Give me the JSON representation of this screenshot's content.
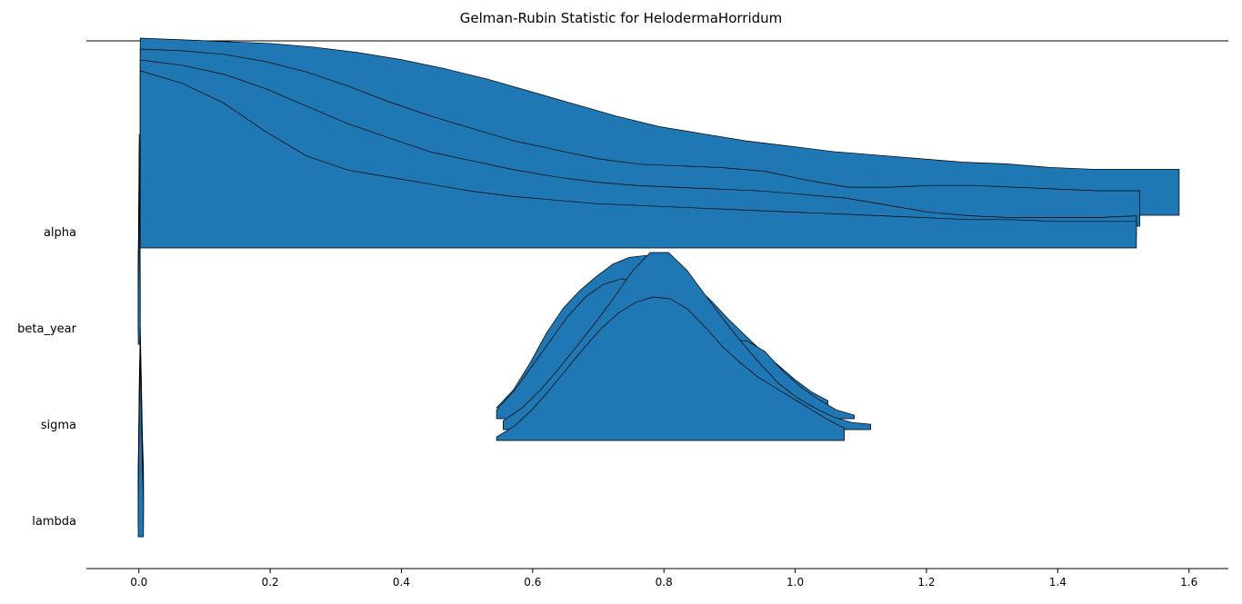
{
  "chart_data": {
    "type": "ridgeplot",
    "title": "Gelman-Rubin Statistic for HelodermaHorridum",
    "xlabel": "",
    "ylabel": "",
    "xlim": [
      -0.08,
      1.66
    ],
    "x_ticks": [
      "0.0",
      "0.2",
      "0.4",
      "0.6",
      "0.8",
      "1.0",
      "1.2",
      "1.4",
      "1.6"
    ],
    "x_tick_values": [
      0.0,
      0.2,
      0.4,
      0.6,
      0.8,
      1.0,
      1.2,
      1.4,
      1.6
    ],
    "fill_color": "#1f77b4",
    "line_color": "#000000",
    "grid": false,
    "parameters": [
      {
        "label": "alpha",
        "chains": [
          {
            "x_min": 0.002,
            "x_max": 1.52,
            "y": [
              1.0,
              0.93,
              0.82,
              0.66,
              0.52,
              0.44,
              0.4,
              0.36,
              0.32,
              0.29,
              0.27,
              0.25,
              0.24,
              0.23,
              0.22,
              0.21,
              0.2,
              0.19,
              0.18,
              0.17,
              0.16,
              0.16,
              0.15,
              0.15,
              0.15
            ]
          },
          {
            "x_min": 0.002,
            "x_max": 1.52,
            "y": [
              1.0,
              0.97,
              0.92,
              0.84,
              0.74,
              0.64,
              0.56,
              0.48,
              0.43,
              0.38,
              0.34,
              0.31,
              0.29,
              0.28,
              0.27,
              0.26,
              0.24,
              0.22,
              0.18,
              0.14,
              0.12,
              0.11,
              0.11,
              0.11,
              0.12
            ]
          },
          {
            "x_min": 0.002,
            "x_max": 1.525,
            "y": [
              1.0,
              0.99,
              0.97,
              0.93,
              0.87,
              0.79,
              0.7,
              0.62,
              0.55,
              0.48,
              0.43,
              0.38,
              0.35,
              0.34,
              0.33,
              0.31,
              0.26,
              0.22,
              0.22,
              0.23,
              0.23,
              0.22,
              0.21,
              0.2,
              0.2
            ]
          },
          {
            "x_min": 0.002,
            "x_max": 1.585,
            "y": [
              1.0,
              0.99,
              0.98,
              0.97,
              0.95,
              0.92,
              0.88,
              0.83,
              0.77,
              0.7,
              0.63,
              0.56,
              0.5,
              0.46,
              0.42,
              0.39,
              0.36,
              0.34,
              0.32,
              0.3,
              0.29,
              0.27,
              0.26,
              0.26,
              0.26
            ]
          }
        ]
      },
      {
        "label": "beta_year",
        "chains": [
          {
            "x_min": -0.001,
            "x_max": 0.002,
            "y": [
              0.3,
              0.6,
              1.0,
              0.6,
              0.3
            ]
          },
          {
            "x_min": -0.001,
            "x_max": 0.002,
            "y": [
              0.3,
              0.6,
              1.0,
              0.6,
              0.3
            ]
          },
          {
            "x_min": -0.001,
            "x_max": 0.002,
            "y": [
              0.3,
              0.6,
              1.0,
              0.6,
              0.3
            ]
          },
          {
            "x_min": -0.001,
            "x_max": 0.002,
            "y": [
              0.3,
              0.6,
              1.0,
              0.6,
              0.3
            ]
          }
        ]
      },
      {
        "label": "sigma",
        "chains": [
          {
            "x_min": 0.545,
            "x_max": 1.075,
            "y": [
              0.02,
              0.08,
              0.17,
              0.28,
              0.4,
              0.52,
              0.63,
              0.72,
              0.78,
              0.81,
              0.8,
              0.74,
              0.64,
              0.53,
              0.44,
              0.36,
              0.3,
              0.24,
              0.18,
              0.12,
              0.07
            ]
          },
          {
            "x_min": 0.555,
            "x_max": 1.115,
            "y": [
              0.05,
              0.12,
              0.22,
              0.34,
              0.47,
              0.6,
              0.74,
              0.89,
              1.0,
              1.0,
              0.9,
              0.76,
              0.62,
              0.49,
              0.37,
              0.26,
              0.18,
              0.12,
              0.07,
              0.04,
              0.03
            ]
          },
          {
            "x_min": 0.545,
            "x_max": 1.09,
            "y": [
              0.05,
              0.16,
              0.3,
              0.44,
              0.58,
              0.69,
              0.76,
              0.79,
              0.77,
              0.73,
              0.66,
              0.58,
              0.5,
              0.44,
              0.44,
              0.38,
              0.27,
              0.18,
              0.11,
              0.05,
              0.02
            ]
          },
          {
            "x_min": 0.545,
            "x_max": 1.05,
            "y": [
              0.0,
              0.1,
              0.25,
              0.42,
              0.56,
              0.66,
              0.74,
              0.81,
              0.85,
              0.86,
              0.83,
              0.77,
              0.69,
              0.6,
              0.5,
              0.41,
              0.32,
              0.24,
              0.16,
              0.09,
              0.04
            ]
          }
        ]
      },
      {
        "label": "lambda",
        "chains": [
          {
            "x_min": -0.001,
            "x_max": 0.007,
            "y": [
              0.2,
              0.7,
              1.0,
              0.7,
              0.4,
              0.2
            ]
          },
          {
            "x_min": -0.001,
            "x_max": 0.007,
            "y": [
              0.2,
              0.7,
              1.0,
              0.7,
              0.4,
              0.2
            ]
          },
          {
            "x_min": -0.001,
            "x_max": 0.007,
            "y": [
              0.2,
              0.7,
              1.0,
              0.7,
              0.4,
              0.2
            ]
          },
          {
            "x_min": -0.001,
            "x_max": 0.007,
            "y": [
              0.2,
              0.7,
              1.0,
              0.7,
              0.4,
              0.2
            ]
          }
        ]
      }
    ]
  }
}
